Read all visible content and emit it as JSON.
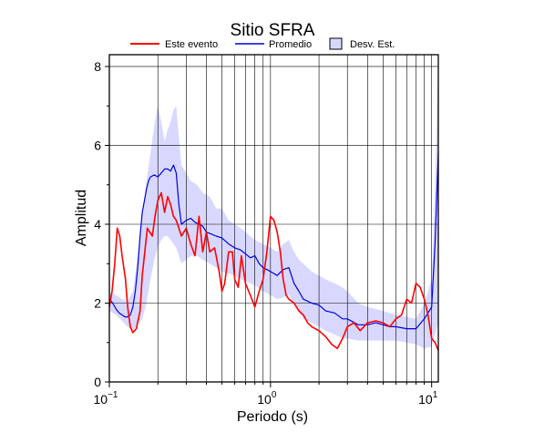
{
  "chart_data": {
    "type": "line",
    "title": "Sitio SFRA",
    "xlabel": "Periodo (s)",
    "ylabel": "Amplitud",
    "xscale": "log",
    "xlim": [
      0.1,
      11
    ],
    "ylim": [
      0,
      8.3
    ],
    "grid": true,
    "legend_placement": "top",
    "x_tick_labels": [
      {
        "value": 0.1,
        "base": "10",
        "exp": "−1"
      },
      {
        "value": 1,
        "base": "10",
        "exp": "0"
      },
      {
        "value": 10,
        "base": "10",
        "exp": "1"
      }
    ],
    "y_ticks": [
      0,
      2,
      4,
      6,
      8
    ],
    "legend": {
      "este": "Este evento",
      "promedio": "Promedio",
      "desv": "Desv. Est."
    },
    "colors": {
      "este": "#ff0000",
      "promedio": "#0000dd",
      "band": "#d8d8ff"
    },
    "series": [
      {
        "name": "Este evento",
        "x": [
          0.1,
          0.104,
          0.108,
          0.112,
          0.116,
          0.12,
          0.126,
          0.13,
          0.135,
          0.14,
          0.147,
          0.155,
          0.16,
          0.166,
          0.172,
          0.178,
          0.185,
          0.192,
          0.2,
          0.21,
          0.22,
          0.23,
          0.24,
          0.25,
          0.26,
          0.27,
          0.28,
          0.29,
          0.3,
          0.32,
          0.34,
          0.36,
          0.38,
          0.4,
          0.42,
          0.45,
          0.48,
          0.5,
          0.52,
          0.55,
          0.58,
          0.6,
          0.63,
          0.66,
          0.7,
          0.75,
          0.8,
          0.85,
          0.9,
          0.95,
          1.0,
          1.05,
          1.1,
          1.15,
          1.2,
          1.25,
          1.3,
          1.4,
          1.5,
          1.6,
          1.7,
          1.8,
          2.0,
          2.2,
          2.4,
          2.6,
          2.8,
          3.0,
          3.3,
          3.6,
          4.0,
          4.5,
          5.0,
          5.5,
          6.0,
          6.5,
          7.0,
          7.5,
          8.0,
          8.5,
          9.0,
          9.5,
          10.0,
          10.5,
          11.0
        ],
        "values": [
          1.9,
          2.3,
          3.0,
          3.9,
          3.7,
          3.2,
          2.6,
          1.9,
          1.4,
          1.25,
          1.35,
          1.8,
          2.7,
          3.3,
          3.9,
          3.8,
          3.7,
          4.2,
          4.6,
          4.8,
          4.3,
          4.7,
          4.5,
          4.2,
          4.1,
          3.9,
          3.7,
          3.8,
          3.9,
          3.5,
          3.2,
          4.2,
          3.3,
          3.8,
          3.3,
          3.4,
          2.8,
          2.3,
          2.5,
          3.3,
          3.3,
          2.6,
          2.4,
          3.2,
          2.5,
          2.2,
          1.9,
          2.3,
          2.6,
          3.3,
          4.2,
          4.1,
          3.8,
          3.3,
          2.6,
          2.2,
          2.1,
          2.0,
          1.8,
          1.7,
          1.5,
          1.4,
          1.3,
          1.15,
          0.95,
          0.85,
          1.1,
          1.4,
          1.5,
          1.3,
          1.5,
          1.55,
          1.5,
          1.4,
          1.6,
          1.7,
          2.1,
          2.0,
          2.5,
          2.4,
          2.1,
          1.7,
          1.1,
          1.0,
          0.8
        ]
      },
      {
        "name": "Promedio",
        "x": [
          0.1,
          0.105,
          0.11,
          0.115,
          0.12,
          0.125,
          0.13,
          0.135,
          0.14,
          0.145,
          0.15,
          0.155,
          0.16,
          0.165,
          0.17,
          0.175,
          0.18,
          0.19,
          0.2,
          0.21,
          0.22,
          0.23,
          0.24,
          0.25,
          0.26,
          0.27,
          0.28,
          0.3,
          0.32,
          0.34,
          0.36,
          0.38,
          0.4,
          0.43,
          0.46,
          0.5,
          0.55,
          0.6,
          0.65,
          0.7,
          0.75,
          0.8,
          0.85,
          0.9,
          0.95,
          1.0,
          1.1,
          1.2,
          1.3,
          1.4,
          1.5,
          1.6,
          1.8,
          2.0,
          2.2,
          2.5,
          2.8,
          3.0,
          3.5,
          4.0,
          4.5,
          5.0,
          5.5,
          6.0,
          7.0,
          8.0,
          9.0,
          10.0,
          10.5,
          11.0
        ],
        "values": [
          2.1,
          2.0,
          1.85,
          1.75,
          1.7,
          1.65,
          1.65,
          1.7,
          1.9,
          2.3,
          2.9,
          3.7,
          4.3,
          4.6,
          4.9,
          5.1,
          5.2,
          5.25,
          5.2,
          5.3,
          5.4,
          5.4,
          5.35,
          5.5,
          5.3,
          4.5,
          4.0,
          4.1,
          4.15,
          4.05,
          4.0,
          3.95,
          3.8,
          3.75,
          3.7,
          3.65,
          3.5,
          3.4,
          3.35,
          3.25,
          3.15,
          3.2,
          3.0,
          2.9,
          2.85,
          2.8,
          2.7,
          2.85,
          2.9,
          2.5,
          2.3,
          2.1,
          2.0,
          1.95,
          1.8,
          1.75,
          1.6,
          1.6,
          1.45,
          1.45,
          1.5,
          1.45,
          1.4,
          1.4,
          1.35,
          1.35,
          1.6,
          1.9,
          3.5,
          5.8
        ]
      },
      {
        "name": "Desv. Est.",
        "x": [
          0.1,
          0.11,
          0.12,
          0.13,
          0.14,
          0.15,
          0.16,
          0.17,
          0.18,
          0.19,
          0.2,
          0.21,
          0.22,
          0.23,
          0.24,
          0.25,
          0.26,
          0.27,
          0.28,
          0.3,
          0.32,
          0.35,
          0.38,
          0.42,
          0.46,
          0.5,
          0.55,
          0.6,
          0.65,
          0.7,
          0.75,
          0.8,
          0.9,
          1.0,
          1.1,
          1.2,
          1.3,
          1.4,
          1.5,
          1.6,
          1.8,
          2.0,
          2.2,
          2.5,
          2.8,
          3.0,
          3.5,
          4.0,
          4.5,
          5.0,
          5.5,
          6.0,
          7.0,
          8.0,
          9.0,
          10.0,
          10.5,
          11.0
        ],
        "upper": [
          2.3,
          2.2,
          2.1,
          2.05,
          2.3,
          3.2,
          4.2,
          5.1,
          5.8,
          6.5,
          7.0,
          6.6,
          6.1,
          6.4,
          6.6,
          6.9,
          7.0,
          6.2,
          5.5,
          5.3,
          5.1,
          5.0,
          4.8,
          4.7,
          4.4,
          4.4,
          4.1,
          4.0,
          3.9,
          3.8,
          3.7,
          3.6,
          3.5,
          3.4,
          3.3,
          3.5,
          3.6,
          3.3,
          3.1,
          3.0,
          2.8,
          2.7,
          2.6,
          2.5,
          2.4,
          2.3,
          2.0,
          1.9,
          1.85,
          1.8,
          1.75,
          1.7,
          1.65,
          1.6,
          2.0,
          2.6,
          5.0,
          8.3
        ],
        "lower": [
          1.8,
          1.7,
          1.55,
          1.4,
          1.3,
          1.45,
          1.6,
          2.0,
          2.6,
          3.1,
          3.4,
          3.6,
          3.7,
          3.7,
          3.6,
          3.5,
          3.4,
          3.2,
          3.0,
          3.1,
          3.2,
          3.2,
          3.1,
          3.0,
          2.9,
          2.8,
          2.75,
          2.7,
          2.6,
          2.55,
          2.5,
          2.45,
          2.3,
          2.2,
          2.1,
          2.15,
          2.2,
          2.0,
          1.8,
          1.6,
          1.5,
          1.4,
          1.3,
          1.2,
          1.1,
          1.1,
          1.05,
          1.05,
          1.05,
          1.05,
          1.05,
          1.05,
          1.0,
          0.95,
          0.85,
          0.9,
          1.2,
          1.5
        ]
      }
    ]
  }
}
